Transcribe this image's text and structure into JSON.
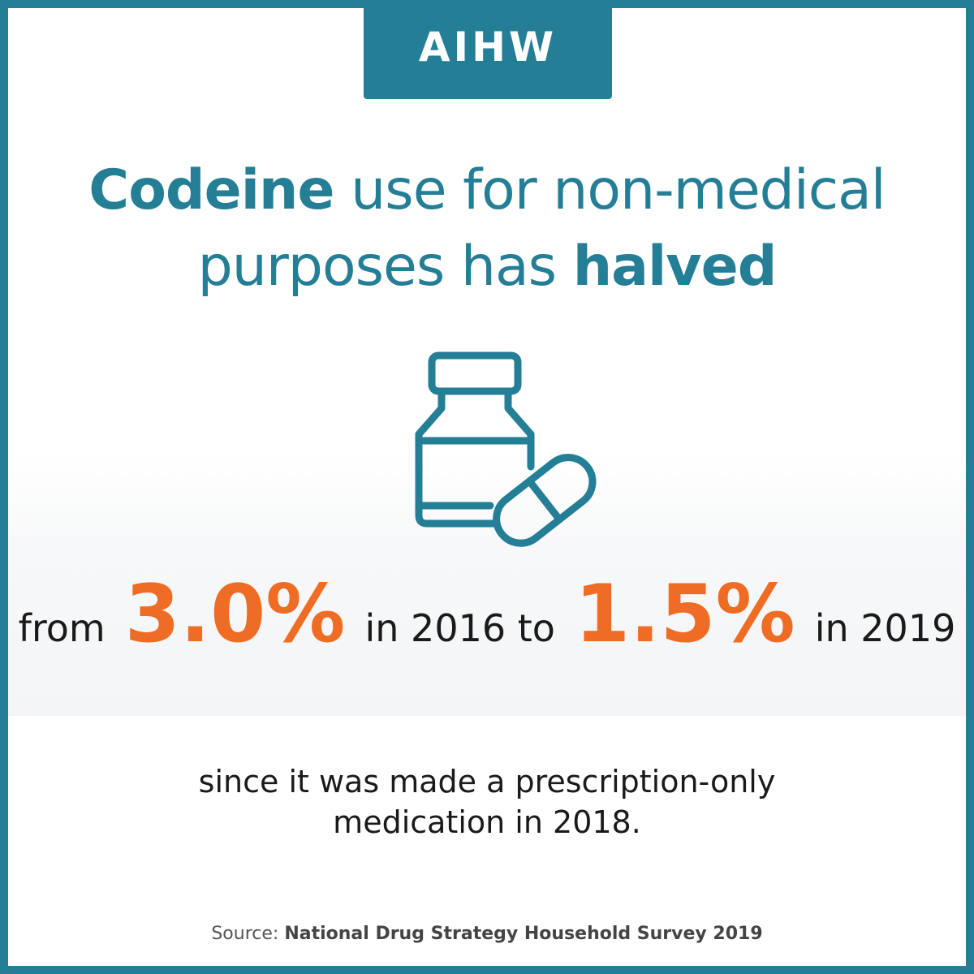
{
  "logo": {
    "text": "AIHW"
  },
  "headline": {
    "line1_bold": "Codeine",
    "line1_rest": " use for non-medical",
    "line2_rest": "purposes has ",
    "line2_bold": "halved"
  },
  "icon": {
    "name": "medicine-bottle-and-capsule-icon"
  },
  "stat": {
    "prefix": "from",
    "value_2016": "3.0%",
    "middle": "in 2016 to",
    "value_2019": "1.5%",
    "suffix": "in 2019"
  },
  "subtext": {
    "line1": "since it was made a prescription-only",
    "line2": "medication in 2018."
  },
  "source": {
    "label": "Source: ",
    "title": "National Drug Strategy Household Survey 2019"
  },
  "colors": {
    "brand_teal": "#237e96",
    "accent_orange": "#ef6c24",
    "text_dark": "#1a1a1a"
  }
}
